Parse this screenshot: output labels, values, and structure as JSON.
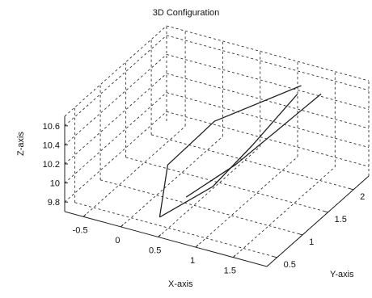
{
  "chart_data": {
    "type": "line3d",
    "title": "3D Configuration",
    "xlabel": "X-axis",
    "ylabel": "Y-axis",
    "zlabel": "Z-axis",
    "xlim": [
      -0.75,
      1.95
    ],
    "ylim": [
      0.3,
      2.3
    ],
    "zlim": [
      9.7,
      10.7
    ],
    "xticks": [
      "-0.5",
      "0",
      "0.5",
      "1",
      "1.5"
    ],
    "xtick_values": [
      -0.5,
      0,
      0.5,
      1,
      1.5
    ],
    "yticks": [
      "0.5",
      "1",
      "1.5",
      "2"
    ],
    "ytick_values": [
      0.5,
      1,
      1.5,
      2
    ],
    "zticks": [
      "9.8",
      "10",
      "10.2",
      "10.4",
      "10.6"
    ],
    "ztick_values": [
      9.8,
      10,
      10.2,
      10.4,
      10.6
    ],
    "grid": true,
    "series": [
      {
        "x": [
          0.45,
          0.15,
          0.4,
          1.15
        ],
        "y": [
          0.4,
          1.0,
          1.55,
          2.15
        ],
        "z": [
          9.85,
          10.05,
          10.3,
          10.55
        ]
      },
      {
        "x": [
          0.45,
          0.75,
          0.9,
          1.1
        ],
        "y": [
          0.4,
          1.0,
          1.55,
          2.15
        ],
        "z": [
          9.85,
          9.95,
          10.15,
          10.45
        ]
      },
      {
        "x": [
          0.6,
          0.95,
          1.2,
          1.45
        ],
        "y": [
          0.7,
          1.15,
          1.6,
          2.1
        ],
        "z": [
          9.95,
          10.15,
          10.35,
          10.55
        ]
      }
    ]
  }
}
